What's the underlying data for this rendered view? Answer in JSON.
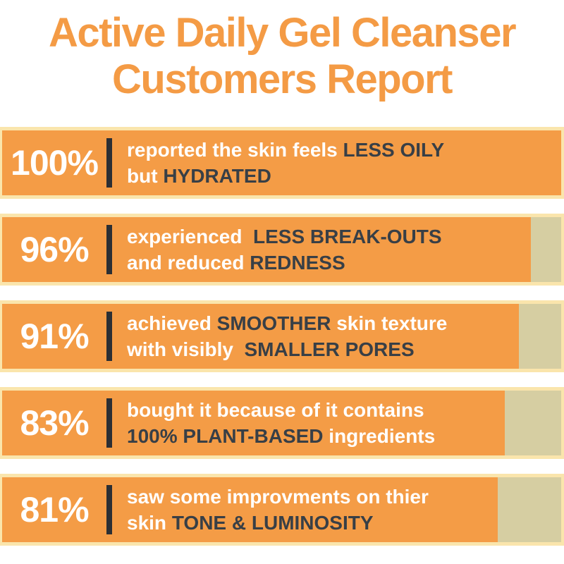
{
  "title": {
    "line1": "Active Daily Gel Cleanser",
    "line2": "Customers Report"
  },
  "colors": {
    "bar_fill": "#F49C46",
    "bar_border": "#FAE5AC",
    "bar_remainder": "#D6CEA2",
    "text_light": "#FFFFFF",
    "text_dark": "#383F46",
    "divider": "#2B2F34",
    "title": "#F49B45",
    "background": "#FFFFFF"
  },
  "bars": [
    {
      "percent": "100%",
      "value": 100,
      "fill_pct": 100,
      "lines": [
        [
          {
            "text": "reported the skin feels ",
            "tone": "light"
          },
          {
            "text": "LESS OILY",
            "tone": "dark"
          }
        ],
        [
          {
            "text": "but ",
            "tone": "light"
          },
          {
            "text": "HYDRATED",
            "tone": "dark"
          }
        ]
      ]
    },
    {
      "percent": "96%",
      "value": 96,
      "fill_pct": 94.6,
      "lines": [
        [
          {
            "text": "experienced  ",
            "tone": "light"
          },
          {
            "text": "LESS BREAK-OUTS",
            "tone": "dark"
          }
        ],
        [
          {
            "text": "and reduced ",
            "tone": "light"
          },
          {
            "text": "REDNESS",
            "tone": "dark"
          }
        ]
      ]
    },
    {
      "percent": "91%",
      "value": 91,
      "fill_pct": 92.4,
      "lines": [
        [
          {
            "text": "achieved ",
            "tone": "light"
          },
          {
            "text": "SMOOTHER",
            "tone": "dark"
          },
          {
            "text": " skin texture",
            "tone": "light"
          }
        ],
        [
          {
            "text": "with visibly  ",
            "tone": "light"
          },
          {
            "text": "SMALLER PORES",
            "tone": "dark"
          }
        ]
      ]
    },
    {
      "percent": "83%",
      "value": 83,
      "fill_pct": 89.9,
      "lines": [
        [
          {
            "text": "bought it because of it contains",
            "tone": "light"
          }
        ],
        [
          {
            "text": "100% PLANT-BASED",
            "tone": "dark"
          },
          {
            "text": " ingredients",
            "tone": "light"
          }
        ]
      ]
    },
    {
      "percent": "81%",
      "value": 81,
      "fill_pct": 88.6,
      "lines": [
        [
          {
            "text": "saw some improvments on thier",
            "tone": "light"
          }
        ],
        [
          {
            "text": "skin ",
            "tone": "light"
          },
          {
            "text": "TONE & LUMINOSITY",
            "tone": "dark"
          }
        ]
      ]
    }
  ],
  "chart_data": {
    "type": "bar",
    "orientation": "horizontal",
    "title": "Active Daily Gel Cleanser Customers Report",
    "categories": [
      "reported the skin feels LESS OILY but HYDRATED",
      "experienced LESS BREAK-OUTS and reduced REDNESS",
      "achieved SMOOTHER skin texture with visibly SMALLER PORES",
      "bought it because of it contains 100% PLANT-BASED ingredients",
      "saw some improvments on thier skin TONE & LUMINOSITY"
    ],
    "values": [
      100,
      96,
      91,
      83,
      81
    ],
    "value_labels": [
      "100%",
      "96%",
      "91%",
      "83%",
      "81%"
    ],
    "xlim": [
      0,
      100
    ],
    "grid": false,
    "legend": false
  }
}
